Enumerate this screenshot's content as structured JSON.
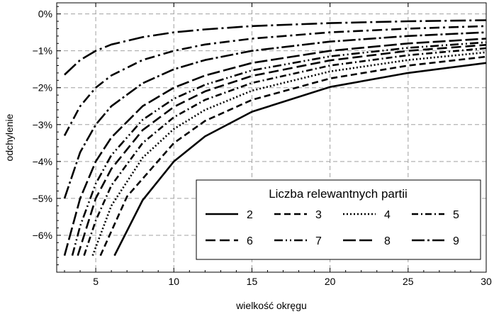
{
  "chart_data": {
    "type": "line",
    "xlabel": "wielkość okręgu",
    "ylabel": "odchylenie",
    "xlim": [
      2.5,
      30
    ],
    "ylim": [
      -7.0,
      0.3
    ],
    "x_ticks": [
      5,
      10,
      15,
      20,
      25,
      30
    ],
    "x_tick_labels": [
      "5",
      "10",
      "15",
      "20",
      "25",
      "30"
    ],
    "y_ticks": [
      0,
      -1,
      -2,
      -3,
      -4,
      -5,
      -6
    ],
    "y_tick_labels": [
      "0%",
      "−1%",
      "−2%",
      "−3%",
      "−4%",
      "−5%",
      "−6%"
    ],
    "grid": true,
    "legend_position": "bottom-right",
    "legend_title": "Liczba relewantnych partii",
    "series": [
      {
        "name": "2",
        "dash": "solid",
        "points": [
          [
            6.2,
            -6.55
          ],
          [
            8,
            -5.05
          ],
          [
            10,
            -4.0
          ],
          [
            12,
            -3.32
          ],
          [
            15,
            -2.65
          ],
          [
            20,
            -1.98
          ],
          [
            25,
            -1.6
          ],
          [
            30,
            -1.33
          ]
        ]
      },
      {
        "name": "3",
        "dash": "dashed",
        "points": [
          [
            5.3,
            -6.55
          ],
          [
            7,
            -4.95
          ],
          [
            10,
            -3.5
          ],
          [
            12,
            -2.9
          ],
          [
            15,
            -2.33
          ],
          [
            20,
            -1.75
          ],
          [
            25,
            -1.4
          ],
          [
            30,
            -1.16
          ]
        ]
      },
      {
        "name": "4",
        "dash": "dotted",
        "points": [
          [
            4.8,
            -6.55
          ],
          [
            6,
            -5.2
          ],
          [
            8,
            -3.9
          ],
          [
            10,
            -3.12
          ],
          [
            12,
            -2.6
          ],
          [
            15,
            -2.08
          ],
          [
            20,
            -1.56
          ],
          [
            25,
            -1.25
          ],
          [
            30,
            -1.04
          ]
        ]
      },
      {
        "name": "5",
        "dash": "dashdot",
        "points": [
          [
            4.25,
            -6.55
          ],
          [
            5,
            -5.6
          ],
          [
            6,
            -4.65
          ],
          [
            8,
            -3.5
          ],
          [
            10,
            -2.8
          ],
          [
            12,
            -2.33
          ],
          [
            15,
            -1.87
          ],
          [
            20,
            -1.4
          ],
          [
            25,
            -1.12
          ],
          [
            30,
            -0.93
          ]
        ]
      },
      {
        "name": "6",
        "dash": "longdash",
        "points": [
          [
            3.85,
            -6.55
          ],
          [
            5,
            -5.0
          ],
          [
            6,
            -4.2
          ],
          [
            8,
            -3.15
          ],
          [
            10,
            -2.52
          ],
          [
            12,
            -2.1
          ],
          [
            15,
            -1.68
          ],
          [
            20,
            -1.26
          ],
          [
            25,
            -1.0
          ],
          [
            30,
            -0.84
          ]
        ]
      },
      {
        "name": "7",
        "dash": "dashdotdot",
        "points": [
          [
            3.5,
            -6.55
          ],
          [
            4,
            -5.75
          ],
          [
            5,
            -4.6
          ],
          [
            6,
            -3.83
          ],
          [
            8,
            -2.87
          ],
          [
            10,
            -2.3
          ],
          [
            12,
            -1.92
          ],
          [
            15,
            -1.53
          ],
          [
            20,
            -1.15
          ],
          [
            25,
            -0.92
          ],
          [
            30,
            -0.77
          ]
        ]
      },
      {
        "name": "8",
        "dash": "longdash-thick",
        "points": [
          [
            3,
            -6.55
          ],
          [
            4,
            -5.0
          ],
          [
            5,
            -4.0
          ],
          [
            6,
            -3.35
          ],
          [
            8,
            -2.5
          ],
          [
            10,
            -2.0
          ],
          [
            12,
            -1.67
          ],
          [
            15,
            -1.33
          ],
          [
            20,
            -1.0
          ],
          [
            25,
            -0.8
          ],
          [
            30,
            -0.67
          ]
        ]
      },
      {
        "name": "9",
        "dash": "longdashdot",
        "points": [
          [
            3,
            -5.0
          ],
          [
            4,
            -3.75
          ],
          [
            5,
            -3.0
          ],
          [
            6,
            -2.5
          ],
          [
            8,
            -1.88
          ],
          [
            10,
            -1.5
          ],
          [
            12,
            -1.25
          ],
          [
            15,
            -1.0
          ],
          [
            20,
            -0.75
          ],
          [
            25,
            -0.6
          ],
          [
            30,
            -0.5
          ]
        ]
      },
      {
        "name": "",
        "dash": "dashdot-short",
        "points": [
          [
            3,
            -3.3
          ],
          [
            4,
            -2.5
          ],
          [
            5,
            -2.0
          ],
          [
            6,
            -1.67
          ],
          [
            8,
            -1.25
          ],
          [
            10,
            -1.0
          ],
          [
            12,
            -0.83
          ],
          [
            15,
            -0.67
          ],
          [
            20,
            -0.5
          ],
          [
            25,
            -0.4
          ],
          [
            30,
            -0.33
          ]
        ]
      },
      {
        "name": "",
        "dash": "dashdot-long",
        "points": [
          [
            3,
            -1.65
          ],
          [
            4,
            -1.25
          ],
          [
            5,
            -1.0
          ],
          [
            6,
            -0.83
          ],
          [
            8,
            -0.63
          ],
          [
            10,
            -0.5
          ],
          [
            12,
            -0.42
          ],
          [
            15,
            -0.33
          ],
          [
            20,
            -0.25
          ],
          [
            25,
            -0.2
          ],
          [
            30,
            -0.17
          ]
        ]
      }
    ]
  },
  "legend_order": [
    [
      "2",
      "3",
      "4",
      "5"
    ],
    [
      "6",
      "7",
      "8",
      "9"
    ]
  ]
}
